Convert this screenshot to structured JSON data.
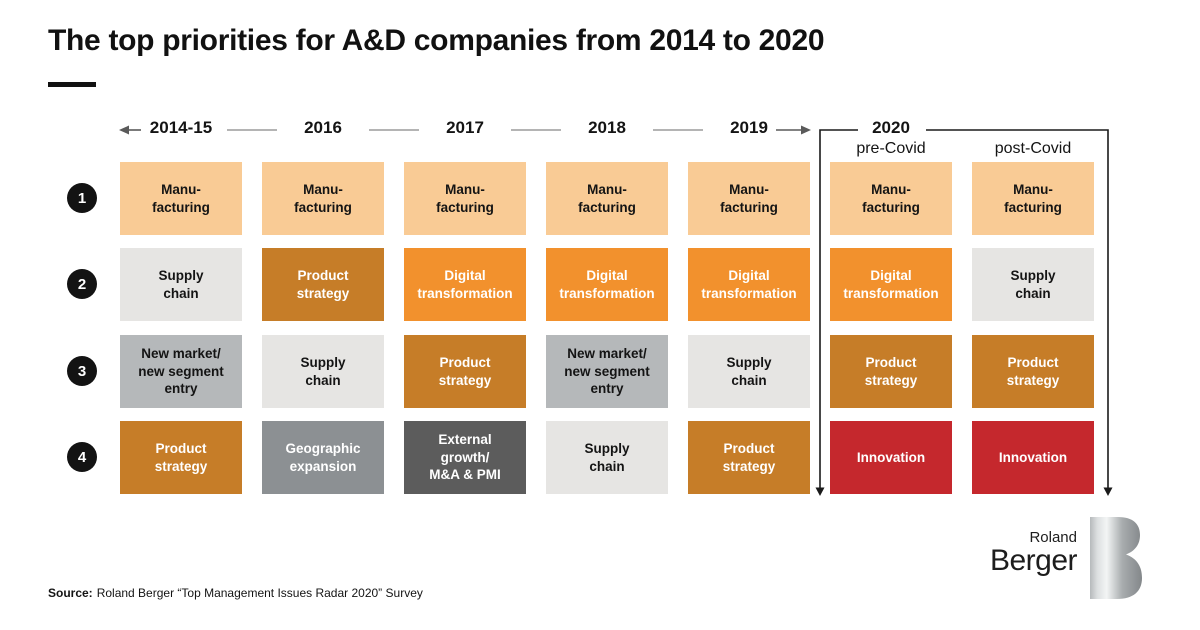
{
  "title": "The top priorities for A&D companies from 2014 to 2020",
  "ranks": [
    "1",
    "2",
    "3",
    "4"
  ],
  "palette": {
    "manufacturing": {
      "bg": "#F9CB95",
      "fg": "#141414"
    },
    "supply_chain": {
      "bg": "#E6E5E3",
      "fg": "#141414"
    },
    "digital_transformation": {
      "bg": "#F2912D",
      "fg": "#FFFFFF"
    },
    "product_strategy": {
      "bg": "#C67D28",
      "fg": "#FFFFFF"
    },
    "new_market": {
      "bg": "#B5B8BA",
      "fg": "#141414"
    },
    "geographic_expansion": {
      "bg": "#8C9093",
      "fg": "#FFFFFF"
    },
    "external_growth": {
      "bg": "#5C5C5C",
      "fg": "#FFFFFF"
    },
    "innovation": {
      "bg": "#C5282D",
      "fg": "#FFFFFF"
    }
  },
  "columns": [
    {
      "year": "2014-15",
      "sub": "",
      "boxes": [
        {
          "lines": [
            "Manu-",
            "facturing"
          ],
          "color": "manufacturing"
        },
        {
          "lines": [
            "Supply",
            "chain"
          ],
          "color": "supply_chain"
        },
        {
          "lines": [
            "New market/",
            "new segment",
            "entry"
          ],
          "color": "new_market"
        },
        {
          "lines": [
            "Product",
            "strategy"
          ],
          "color": "product_strategy"
        }
      ]
    },
    {
      "year": "2016",
      "sub": "",
      "boxes": [
        {
          "lines": [
            "Manu-",
            "facturing"
          ],
          "color": "manufacturing"
        },
        {
          "lines": [
            "Product",
            "strategy"
          ],
          "color": "product_strategy"
        },
        {
          "lines": [
            "Supply",
            "chain"
          ],
          "color": "supply_chain"
        },
        {
          "lines": [
            "Geographic",
            "expansion"
          ],
          "color": "geographic_expansion"
        }
      ]
    },
    {
      "year": "2017",
      "sub": "",
      "boxes": [
        {
          "lines": [
            "Manu-",
            "facturing"
          ],
          "color": "manufacturing"
        },
        {
          "lines": [
            "Digital",
            "transformation"
          ],
          "color": "digital_transformation"
        },
        {
          "lines": [
            "Product",
            "strategy"
          ],
          "color": "product_strategy"
        },
        {
          "lines": [
            "External",
            "growth/",
            "M&A & PMI"
          ],
          "color": "external_growth"
        }
      ]
    },
    {
      "year": "2018",
      "sub": "",
      "boxes": [
        {
          "lines": [
            "Manu-",
            "facturing"
          ],
          "color": "manufacturing"
        },
        {
          "lines": [
            "Digital",
            "transformation"
          ],
          "color": "digital_transformation"
        },
        {
          "lines": [
            "New market/",
            "new segment",
            "entry"
          ],
          "color": "new_market"
        },
        {
          "lines": [
            "Supply",
            "chain"
          ],
          "color": "supply_chain"
        }
      ]
    },
    {
      "year": "2019",
      "sub": "",
      "boxes": [
        {
          "lines": [
            "Manu-",
            "facturing"
          ],
          "color": "manufacturing"
        },
        {
          "lines": [
            "Digital",
            "transformation"
          ],
          "color": "digital_transformation"
        },
        {
          "lines": [
            "Supply",
            "chain"
          ],
          "color": "supply_chain"
        },
        {
          "lines": [
            "Product",
            "strategy"
          ],
          "color": "product_strategy"
        }
      ]
    },
    {
      "year": "2020",
      "sub": "pre-Covid",
      "boxes": [
        {
          "lines": [
            "Manu-",
            "facturing"
          ],
          "color": "manufacturing"
        },
        {
          "lines": [
            "Digital",
            "transformation"
          ],
          "color": "digital_transformation"
        },
        {
          "lines": [
            "Product",
            "strategy"
          ],
          "color": "product_strategy"
        },
        {
          "lines": [
            "Innovation"
          ],
          "color": "innovation"
        }
      ]
    },
    {
      "year": "",
      "sub": "post-Covid",
      "boxes": [
        {
          "lines": [
            "Manu-",
            "facturing"
          ],
          "color": "manufacturing"
        },
        {
          "lines": [
            "Supply",
            "chain"
          ],
          "color": "supply_chain"
        },
        {
          "lines": [
            "Product",
            "strategy"
          ],
          "color": "product_strategy"
        },
        {
          "lines": [
            "Innovation"
          ],
          "color": "innovation"
        }
      ]
    }
  ],
  "source": {
    "label": "Source:",
    "text": "Roland Berger “Top Management Issues Radar 2020” Survey"
  },
  "logo": {
    "top": "Roland",
    "bottom": "Berger"
  },
  "chart_data": {
    "type": "table",
    "title": "The top priorities for A&D companies from 2014 to 2020",
    "row_labels": [
      "1",
      "2",
      "3",
      "4"
    ],
    "columns": [
      "2014-15",
      "2016",
      "2017",
      "2018",
      "2019",
      "2020 pre-Covid",
      "2020 post-Covid"
    ],
    "rankings_by_column": {
      "2014-15": [
        "Manufacturing",
        "Supply chain",
        "New market/new segment entry",
        "Product strategy"
      ],
      "2016": [
        "Manufacturing",
        "Product strategy",
        "Supply chain",
        "Geographic expansion"
      ],
      "2017": [
        "Manufacturing",
        "Digital transformation",
        "Product strategy",
        "External growth/M&A & PMI"
      ],
      "2018": [
        "Manufacturing",
        "Digital transformation",
        "New market/new segment entry",
        "Supply chain"
      ],
      "2019": [
        "Manufacturing",
        "Digital transformation",
        "Supply chain",
        "Product strategy"
      ],
      "2020 pre-Covid": [
        "Manufacturing",
        "Digital transformation",
        "Product strategy",
        "Innovation"
      ],
      "2020 post-Covid": [
        "Manufacturing",
        "Supply chain",
        "Product strategy",
        "Innovation"
      ]
    },
    "legend_position": "none",
    "grid": false
  }
}
